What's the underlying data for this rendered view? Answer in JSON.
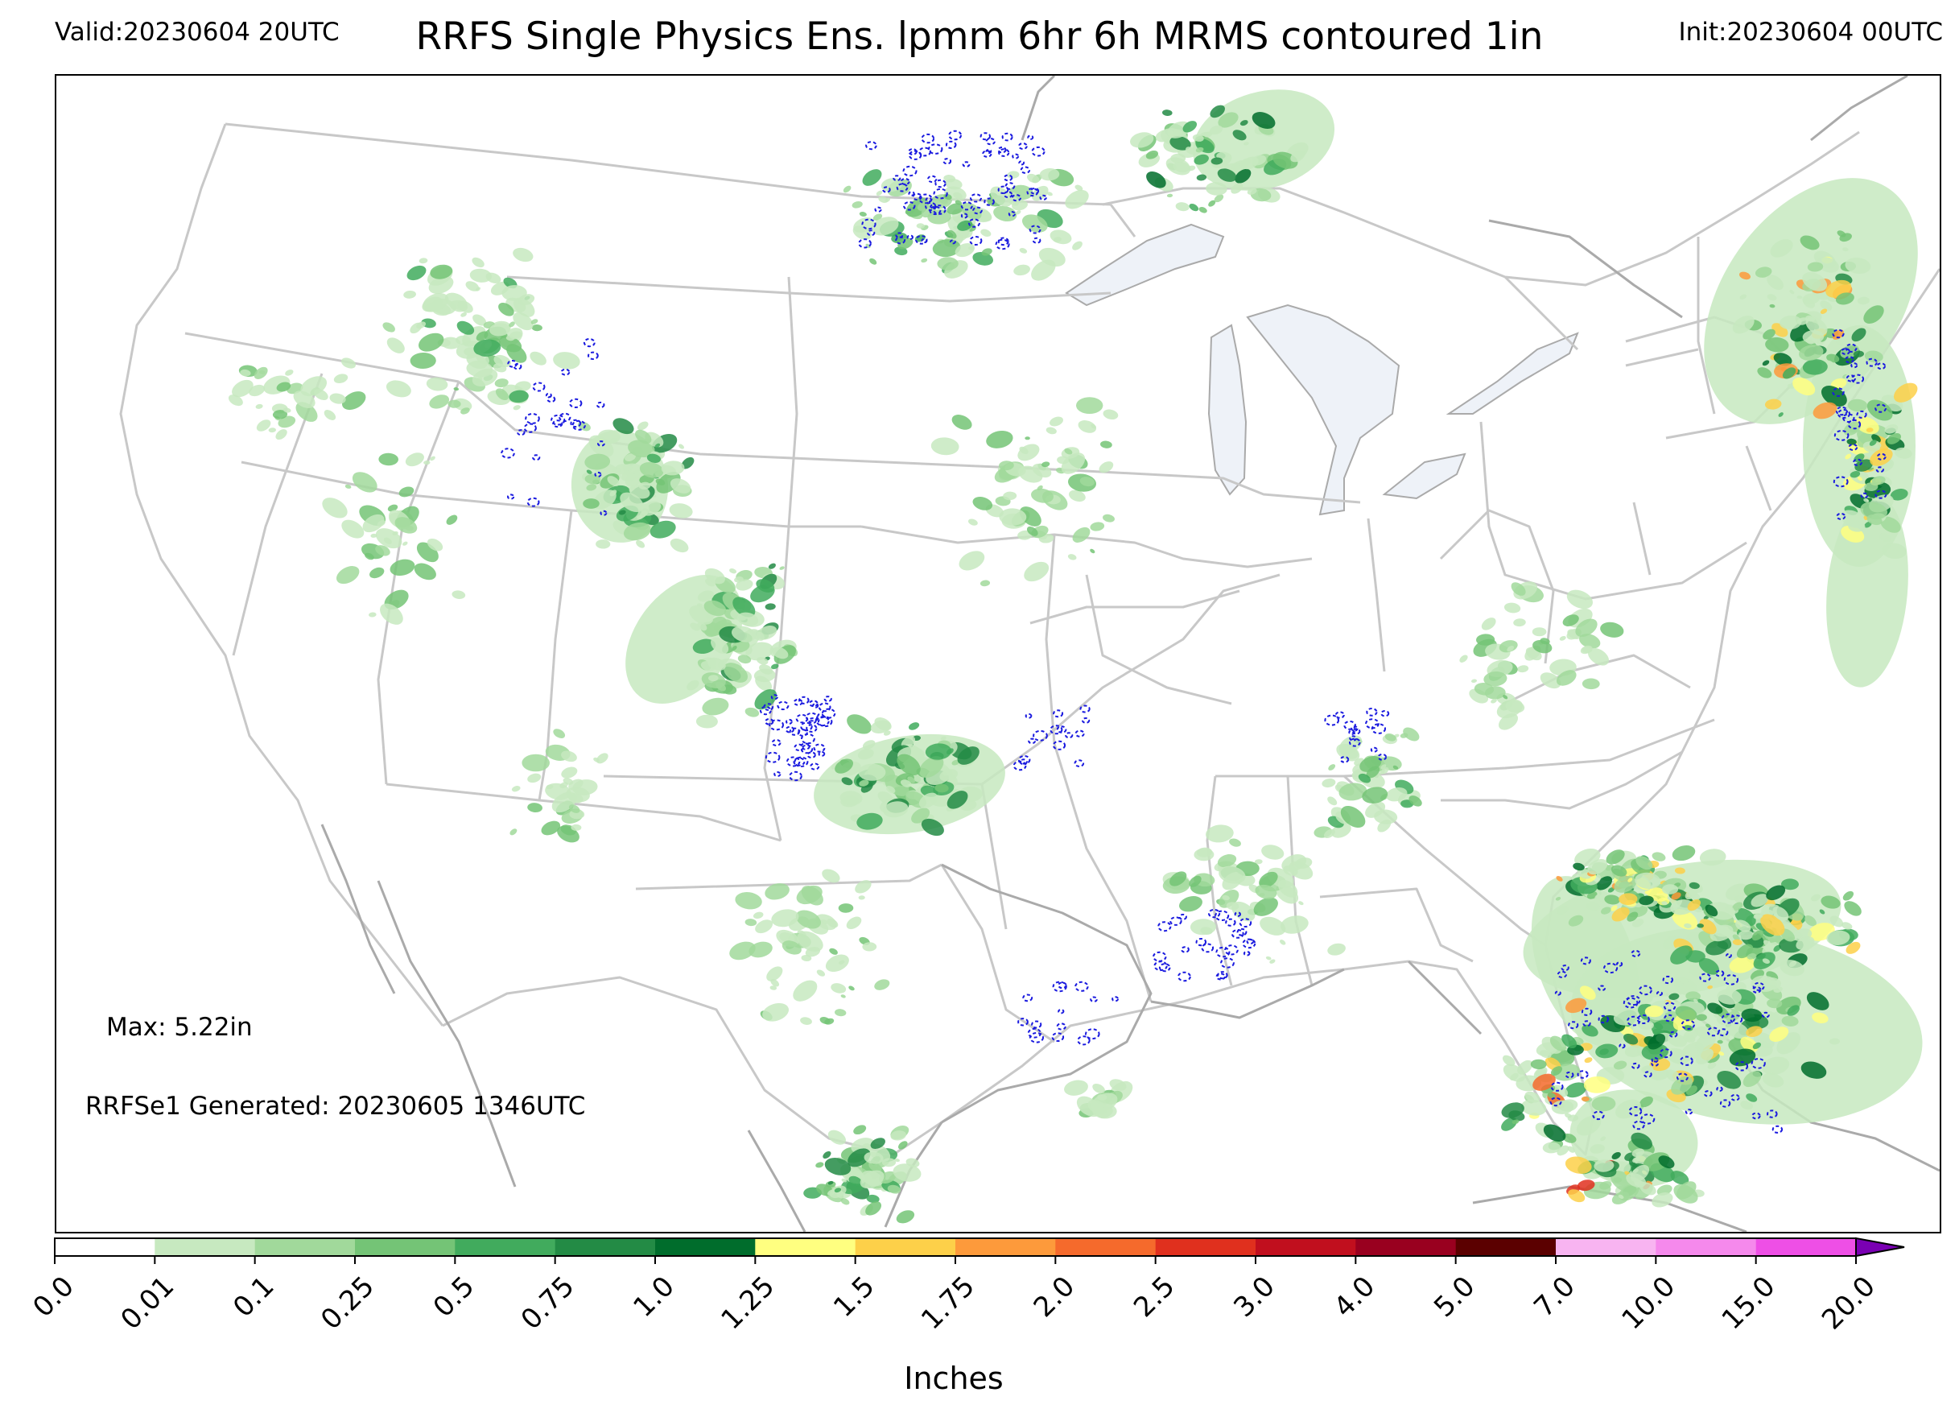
{
  "header": {
    "valid": "Valid:20230604 20UTC",
    "title": "RRFS Single Physics Ens. lpmm 6hr 6h MRMS contoured 1in",
    "init": "Init:20230604 00UTC"
  },
  "annotations": {
    "max": "Max: 5.22in",
    "generated": "RRFSe1 Generated: 20230605 1346UTC"
  },
  "colorbar": {
    "label": "Inches",
    "ticks": [
      "0.0",
      "0.01",
      "0.1",
      "0.25",
      "0.5",
      "0.75",
      "1.0",
      "1.25",
      "1.5",
      "1.75",
      "2.0",
      "2.5",
      "3.0",
      "4.0",
      "5.0",
      "7.0",
      "10.0",
      "15.0",
      "20.0"
    ],
    "colors": [
      "#ffffff",
      "#c7e9c0",
      "#a1d99b",
      "#74c476",
      "#41ab5d",
      "#238b45",
      "#006d2c",
      "#ffff80",
      "#fdd049",
      "#fd9a3b",
      "#f56a2c",
      "#e0301e",
      "#c10f1e",
      "#99001f",
      "#5b0000",
      "#f8b4f1",
      "#f589ec",
      "#ee4fe6",
      "#d81bde",
      "#a612d0",
      "#7a00b3"
    ],
    "extend": "max"
  },
  "contour_color": "#1a1adf",
  "map_colors": {
    "state_lines": "#c8c8c8",
    "coast_lines": "#aaaaaa",
    "lakes": "#eef2f8"
  }
}
